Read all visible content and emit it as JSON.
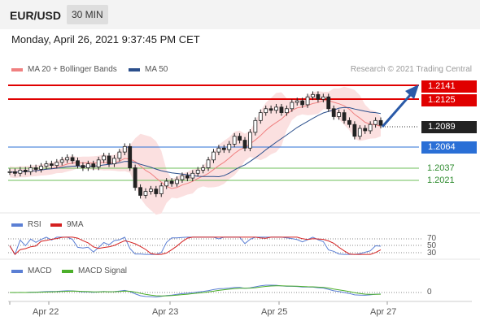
{
  "header": {
    "symbol": "EUR/USD",
    "interval": "30 MIN"
  },
  "datetime": "Monday, April 26, 2021 9:37:45 PM CET",
  "legend_main": [
    {
      "label": "MA 20 + Bollinger Bands",
      "color": "#f08080"
    },
    {
      "label": "MA 50",
      "color": "#2b4f8c"
    }
  ],
  "copyright": "Research © 2021 Trading Central",
  "legend_rsi": [
    {
      "label": "RSI",
      "color": "#5b7fd4"
    },
    {
      "label": "9MA",
      "color": "#d42020"
    }
  ],
  "legend_macd": [
    {
      "label": "MACD",
      "color": "#5b7fd4"
    },
    {
      "label": "MACD Signal",
      "color": "#4caf2a"
    }
  ],
  "levels": [
    {
      "value": "1.2141",
      "style": "red-tag",
      "color": "#e00000"
    },
    {
      "value": "1.2125",
      "style": "red-tag",
      "color": "#e00000"
    },
    {
      "value": "1.2089",
      "style": "dark-tag",
      "color": "#222222"
    },
    {
      "value": "1.2064",
      "style": "blue-tag",
      "color": "#2a6fd6"
    },
    {
      "value": "1.2037",
      "style": "green-text",
      "color": "#2e8b2e"
    },
    {
      "value": "1.2021",
      "style": "green-text",
      "color": "#2e8b2e"
    }
  ],
  "rsi_levels": [
    "70",
    "50",
    "30"
  ],
  "macd_zero": "0",
  "chart_data": {
    "type": "line",
    "title": "EUR/USD 30 MIN",
    "x_labels": [
      "Apr 22",
      "Apr 23",
      "Apr 25",
      "Apr 27"
    ],
    "price_ylim": [
      1.1985,
      1.215
    ],
    "price_close": [
      1.203,
      1.2028,
      1.2032,
      1.203,
      1.2035,
      1.2033,
      1.2037,
      1.204,
      1.2038,
      1.2042,
      1.2045,
      1.2048,
      1.2044,
      1.2038,
      1.2035,
      1.204,
      1.2036,
      1.2045,
      1.205,
      1.204,
      1.2047,
      1.2055,
      1.2062,
      1.2035,
      1.201,
      1.2,
      1.2005,
      1.2008,
      1.2002,
      1.2012,
      1.2018,
      1.2015,
      1.202,
      1.2025,
      1.2022,
      1.2028,
      1.2032,
      1.2035,
      1.2045,
      1.2055,
      1.206,
      1.2058,
      1.2065,
      1.2075,
      1.207,
      1.206,
      1.208,
      1.2095,
      1.2105,
      1.211,
      1.2108,
      1.2112,
      1.2105,
      1.211,
      1.2118,
      1.212,
      1.2115,
      1.2125,
      1.2128,
      1.2122,
      1.2125,
      1.211,
      1.21,
      1.2105,
      1.2095,
      1.209,
      1.2075,
      1.2085,
      1.2082,
      1.209,
      1.2095,
      1.2089
    ],
    "rsi_levels": [
      70,
      50,
      30
    ],
    "macd_zero": 0
  }
}
